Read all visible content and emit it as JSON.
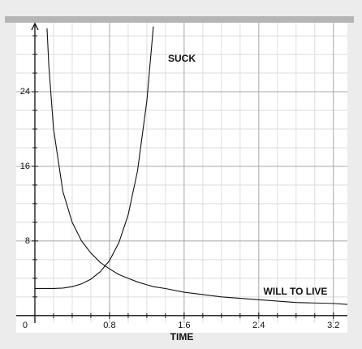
{
  "chart_data": {
    "type": "line",
    "xlabel": "TIME",
    "x": [
      0,
      0.13,
      0.15,
      0.2,
      0.3,
      0.4,
      0.5,
      0.6,
      0.7,
      0.8,
      0.9,
      1.0,
      1.1,
      1.2,
      1.27,
      1.4,
      1.6,
      2.0,
      2.4,
      2.8,
      3.2,
      3.35
    ],
    "series": [
      {
        "name": "SUCK",
        "color": "#111111",
        "values": [
          2.9,
          2.9,
          2.9,
          2.9,
          2.95,
          3.1,
          3.4,
          3.9,
          4.7,
          5.9,
          7.8,
          10.8,
          15.5,
          23,
          31,
          null,
          null,
          null,
          null,
          null,
          null,
          null
        ]
      },
      {
        "name": "WILL TO LIVE",
        "color": "#111111",
        "values": [
          null,
          30.8,
          26.7,
          20,
          13.3,
          10,
          8,
          6.7,
          5.7,
          5,
          4.4,
          4,
          3.6,
          3.3,
          3.1,
          2.9,
          2.5,
          2,
          1.7,
          1.4,
          1.3,
          1.2
        ]
      }
    ],
    "xlim": [
      -0.2,
      3.35
    ],
    "ylim": [
      -0.8,
      31.4
    ],
    "xticks": [
      0,
      0.8,
      1.6,
      2.4,
      3.2
    ],
    "yticks": [
      8,
      16,
      24
    ],
    "xminorticks": [
      0.2,
      0.4,
      0.6,
      1.0,
      1.2,
      1.4,
      1.8,
      2.0,
      2.2,
      2.6,
      2.8,
      3.0
    ],
    "yminorticks": [
      2,
      4,
      6,
      10,
      12,
      14,
      18,
      20,
      22,
      26,
      28,
      30
    ],
    "grid": true
  }
}
